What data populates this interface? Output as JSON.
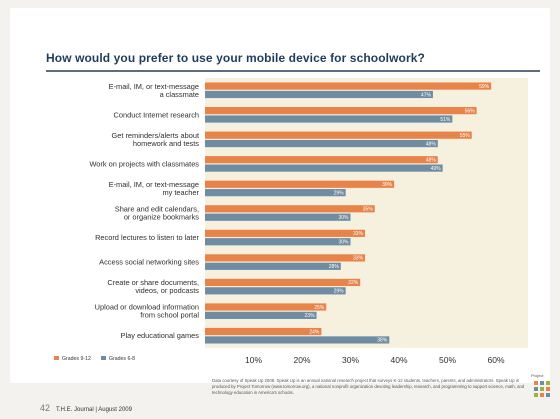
{
  "chart_data": {
    "type": "bar",
    "orientation": "horizontal",
    "title": "How would you prefer to use your mobile device for schoolwork?",
    "categories": [
      [
        "E-mail, IM, or text-message",
        "a classmate"
      ],
      [
        "Conduct Internet research"
      ],
      [
        "Get reminders/alerts about",
        "homework and tests"
      ],
      [
        "Work on projects with classmates"
      ],
      [
        "E-mail, IM, or text-message",
        "my teacher"
      ],
      [
        "Share and edit calendars,",
        "or organize bookmarks"
      ],
      [
        "Record lectures to listen to later"
      ],
      [
        "Access social networking sites"
      ],
      [
        "Create or share documents,",
        "videos, or podcasts"
      ],
      [
        "Upload or download information",
        "from school portal"
      ],
      [
        "Play educational games"
      ]
    ],
    "series": [
      {
        "name": "Grades 9-12",
        "color": "#e8834a",
        "values": [
          59,
          56,
          55,
          48,
          39,
          35,
          33,
          33,
          32,
          25,
          24
        ]
      },
      {
        "name": "Grades 6-8",
        "color": "#6f8ca3",
        "values": [
          47,
          51,
          48,
          49,
          29,
          30,
          30,
          28,
          29,
          23,
          38
        ]
      }
    ],
    "xticks": [
      "10%",
      "20%",
      "30%",
      "40%",
      "50%",
      "60%"
    ],
    "xlim": [
      0,
      65
    ],
    "legend": "bottom-left"
  },
  "source": "Data courtesy of Speak Up 2008. Speak Up is an annual national research project that surveys K-12 students, teachers, parents, and administrators. Speak Up is produced by Project Tomorrow (www.tomorrow.org), a national nonprofit organization devoting leadership, research, and programming to support science, math, and technology education in America's schools.",
  "logo_word": "Project",
  "footer": {
    "page": "42",
    "text": "T.H.E. Journal | August 2009"
  }
}
